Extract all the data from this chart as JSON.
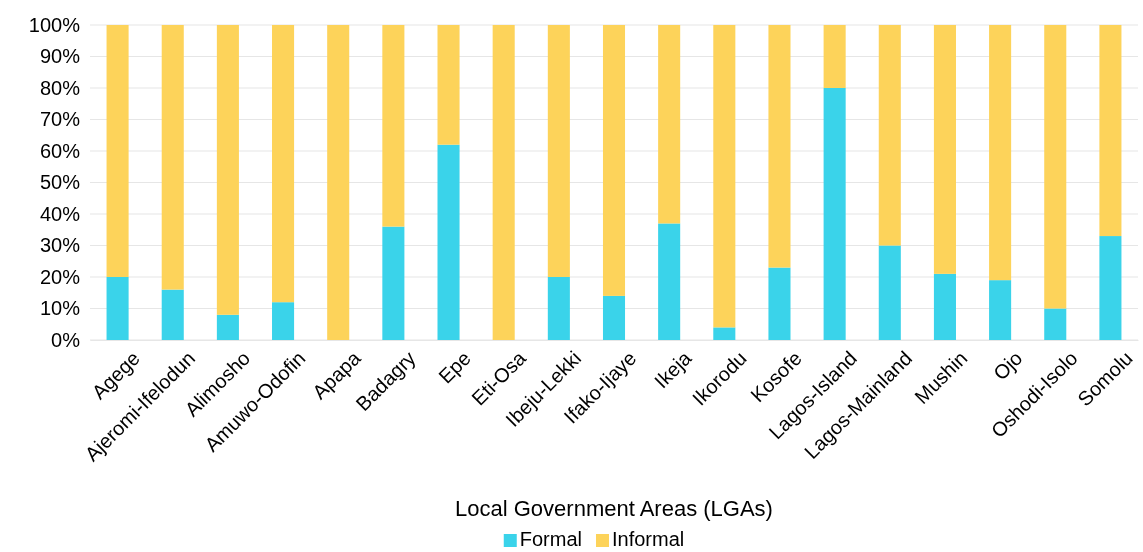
{
  "chart_data": {
    "type": "bar",
    "stacked": true,
    "xlabel": "Local Government Areas (LGAs)",
    "categories": [
      "Agege",
      "Ajeromi-Ifelodun",
      "Alimosho",
      "Amuwo-Odofin",
      "Apapa",
      "Badagry",
      "Epe",
      "Eti-Osa",
      "Ibeju-Lekki",
      "Ifako-Ijaye",
      "Ikeja",
      "Ikorodu",
      "Kosofe",
      "Lagos-Island",
      "Lagos-Mainland",
      "Mushin",
      "Ojo",
      "Oshodi-Isolo",
      "Somolu"
    ],
    "series": [
      {
        "name": "Formal",
        "color": "#3ad3ea",
        "values": [
          20,
          16,
          8,
          12,
          0,
          36,
          62,
          0,
          20,
          14,
          37,
          4,
          23,
          80,
          30,
          21,
          19,
          10,
          33
        ]
      },
      {
        "name": "Informal",
        "color": "#fdd35a",
        "values": [
          80,
          84,
          92,
          88,
          100,
          64,
          38,
          100,
          80,
          86,
          63,
          96,
          77,
          20,
          70,
          79,
          81,
          90,
          67
        ]
      }
    ],
    "ylim": [
      0,
      100
    ],
    "yticks": [
      {
        "value": 0,
        "label": "0%"
      },
      {
        "value": 10,
        "label": "10%"
      },
      {
        "value": 20,
        "label": "20%"
      },
      {
        "value": 30,
        "label": "30%"
      },
      {
        "value": 40,
        "label": "40%"
      },
      {
        "value": 50,
        "label": "50%"
      },
      {
        "value": 60,
        "label": "60%"
      },
      {
        "value": 70,
        "label": "70%"
      },
      {
        "value": 80,
        "label": "80%"
      },
      {
        "value": 90,
        "label": "90%"
      },
      {
        "value": 100,
        "label": "100%"
      }
    ],
    "grid": "y",
    "legend": "bottom"
  }
}
